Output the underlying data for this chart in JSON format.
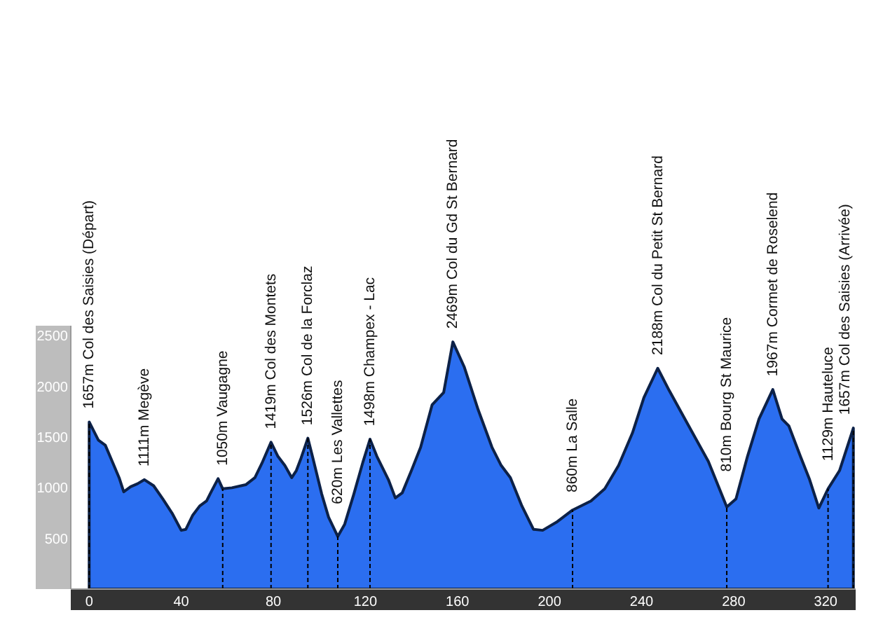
{
  "chart_data": {
    "type": "area",
    "color": "#2b6ef0",
    "x": [
      0,
      4,
      7,
      10,
      13,
      15,
      18,
      21,
      24,
      28,
      32,
      36,
      40,
      42,
      45,
      48,
      51,
      53,
      56,
      58,
      62,
      68,
      72,
      75,
      79,
      82,
      85,
      88,
      90,
      92,
      95,
      97,
      101,
      104,
      108,
      111,
      115,
      119,
      122,
      125,
      130,
      133,
      136,
      140,
      144,
      149,
      154,
      158,
      163,
      169,
      175,
      179,
      183,
      188,
      193,
      197,
      203,
      210,
      218,
      224,
      230,
      236,
      241,
      247,
      252,
      260,
      269,
      277,
      281,
      286,
      291,
      297,
      301,
      304,
      309,
      313,
      317,
      321,
      326,
      332
    ],
    "values": [
      1650,
      1470,
      1420,
      1260,
      1100,
      960,
      1010,
      1040,
      1080,
      1020,
      890,
      750,
      580,
      590,
      730,
      820,
      870,
      960,
      1090,
      990,
      1000,
      1030,
      1100,
      1240,
      1450,
      1310,
      1220,
      1100,
      1170,
      1290,
      1490,
      1310,
      940,
      710,
      520,
      640,
      940,
      1260,
      1480,
      1310,
      1080,
      900,
      950,
      1170,
      1400,
      1820,
      1940,
      2440,
      2190,
      1770,
      1400,
      1220,
      1100,
      820,
      590,
      580,
      660,
      780,
      870,
      990,
      1220,
      1540,
      1890,
      2180,
      1960,
      1630,
      1260,
      810,
      890,
      1310,
      1680,
      1970,
      1680,
      1610,
      1310,
      1080,
      800,
      990,
      1170,
      1590
    ],
    "xlim": [
      -8,
      333
    ],
    "ylim": [
      0,
      2600
    ],
    "xticks": [
      0,
      40,
      80,
      120,
      160,
      200,
      240,
      280,
      320
    ],
    "yticks": [
      500,
      1000,
      1500,
      2000,
      2500
    ],
    "ref_lines": [
      {
        "axis": "x",
        "value": 0,
        "label": "1657m Col des Saisies (Départ)",
        "line_style": "dashed"
      },
      {
        "axis": "x",
        "value": 58,
        "label": "1050m Vaugagne",
        "line_style": "dashed"
      },
      {
        "axis": "x",
        "value": 79,
        "label": "1419m Col des Montets",
        "line_style": "dashed"
      },
      {
        "axis": "x",
        "value": 95,
        "label": "1526m Col de la Forclaz",
        "line_style": "dashed"
      },
      {
        "axis": "x",
        "value": 108,
        "label": "620m Les Vallettes",
        "line_style": "dashed"
      },
      {
        "axis": "x",
        "value": 122,
        "label": "1498m Champex - Lac",
        "line_style": "dashed"
      },
      {
        "axis": "x",
        "value": 210,
        "label": "860m La Salle",
        "line_style": "dashed"
      },
      {
        "axis": "x",
        "value": 277,
        "label": "810m Bourg St Maurice",
        "line_style": "dashed"
      },
      {
        "axis": "x",
        "value": 321,
        "label": "1129m Hauteluce",
        "line_style": "dashed"
      },
      {
        "axis": "x",
        "value": 332,
        "label": "1657m Col des Saisies (Arrivée)",
        "line_style": "dashed"
      }
    ],
    "annotations": [
      {
        "text": "1111m Megève",
        "x": 24,
        "y": 1080
      },
      {
        "text": "2469m Col du Gd St Bernard",
        "x": 158,
        "y": 2440
      },
      {
        "text": "2188m Col du Petit St Bernard",
        "x": 247,
        "y": 2180
      },
      {
        "text": "1967m Cormet de Roselend",
        "x": 297,
        "y": 1970
      }
    ]
  }
}
